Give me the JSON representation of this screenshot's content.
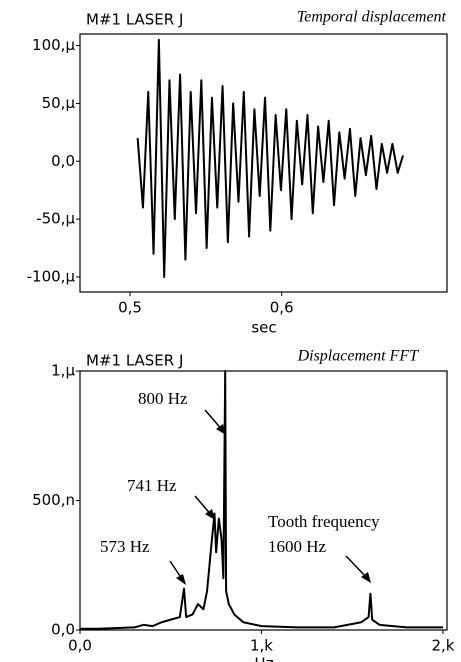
{
  "chart_data": [
    {
      "type": "line",
      "title": "M#1 LASER J",
      "subtitle": "Temporal displacement",
      "x_label": "sec",
      "color": "#000000",
      "x": [
        0.505,
        0.5085,
        0.512,
        0.5155,
        0.519,
        0.5225,
        0.526,
        0.5295,
        0.533,
        0.5365,
        0.54,
        0.5435,
        0.547,
        0.5505,
        0.554,
        0.5575,
        0.561,
        0.5645,
        0.568,
        0.5715,
        0.575,
        0.5785,
        0.582,
        0.5855,
        0.589,
        0.5925,
        0.596,
        0.5995,
        0.603,
        0.6065,
        0.61,
        0.6135,
        0.617,
        0.6205,
        0.624,
        0.6275,
        0.631,
        0.6345,
        0.638,
        0.6415,
        0.645,
        0.6485,
        0.652,
        0.6555,
        0.659,
        0.6625,
        0.666,
        0.6695,
        0.673,
        0.6765,
        0.68
      ],
      "values": [
        20,
        -40,
        60,
        -80,
        105,
        -100,
        70,
        -50,
        75,
        -85,
        60,
        -45,
        70,
        -75,
        55,
        -40,
        65,
        -70,
        50,
        -35,
        60,
        -65,
        45,
        -30,
        55,
        -60,
        40,
        -25,
        45,
        -50,
        35,
        -20,
        40,
        -45,
        30,
        -18,
        35,
        -38,
        25,
        -15,
        28,
        -30,
        20,
        -12,
        22,
        -24,
        15,
        -10,
        15,
        -10,
        5
      ],
      "xlim": [
        0.467,
        0.709
      ],
      "ylim": [
        -113,
        110
      ],
      "xticks": [
        {
          "value": 0.5,
          "label": "0,5"
        },
        {
          "value": 0.6,
          "label": "0,6"
        }
      ],
      "yticks": [
        {
          "value": 100,
          "label": "100,µ"
        },
        {
          "value": 50,
          "label": "50,µ"
        },
        {
          "value": 0,
          "label": "0,0"
        },
        {
          "value": -50,
          "label": "-50,µ"
        },
        {
          "value": -100,
          "label": "-100,µ"
        }
      ],
      "grid": false
    },
    {
      "type": "line",
      "title": "M#1 LASER J",
      "subtitle": "Displacement FFT",
      "x_label": "Hz",
      "color": "#000000",
      "x": [
        0,
        100,
        300,
        350,
        400,
        450,
        500,
        550,
        573,
        585,
        620,
        650,
        680,
        700,
        720,
        741,
        750,
        765,
        780,
        790,
        800,
        805,
        820,
        850,
        900,
        1000,
        1200,
        1400,
        1550,
        1590,
        1600,
        1610,
        1650,
        1800,
        2000
      ],
      "values": [
        0.005,
        0.005,
        0.01,
        0.02,
        0.015,
        0.03,
        0.04,
        0.05,
        0.16,
        0.05,
        0.06,
        0.1,
        0.08,
        0.15,
        0.3,
        0.45,
        0.3,
        0.43,
        0.35,
        0.2,
        1.0,
        0.15,
        0.1,
        0.06,
        0.03,
        0.015,
        0.01,
        0.01,
        0.03,
        0.05,
        0.14,
        0.04,
        0.02,
        0.01,
        0.01
      ],
      "xlim": [
        0,
        2022
      ],
      "ylim": [
        0,
        1
      ],
      "xticks": [
        {
          "value": 0,
          "label": "0,0"
        },
        {
          "value": 1000,
          "label": "1,k"
        },
        {
          "value": 2000,
          "label": "2,k"
        }
      ],
      "yticks": [
        {
          "value": 0,
          "label": "0,0"
        },
        {
          "value": 0.5,
          "label": "500,n"
        },
        {
          "value": 1,
          "label": "1,µ"
        }
      ],
      "grid": false,
      "annotations": [
        "800 Hz",
        "741 Hz",
        "573 Hz",
        "Tooth  frequency",
        "1600 Hz"
      ]
    }
  ]
}
